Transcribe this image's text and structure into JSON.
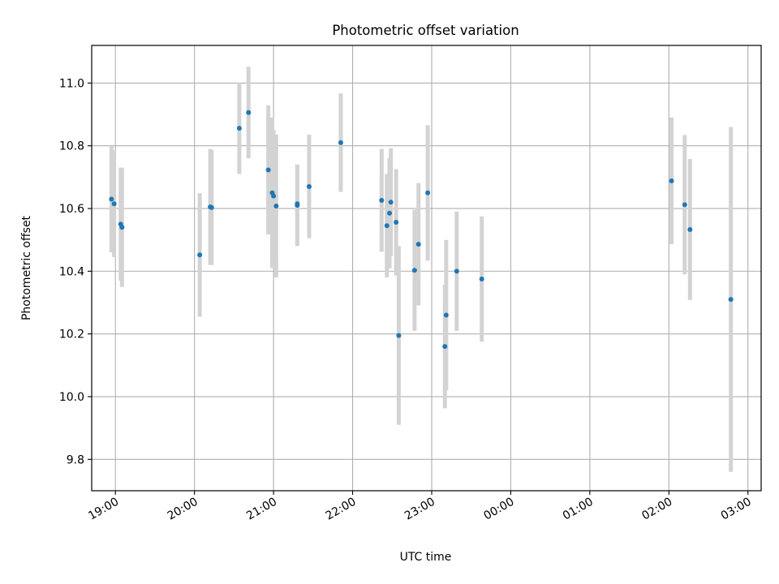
{
  "chart_data": {
    "type": "scatter",
    "title": "Photometric offset variation",
    "xlabel": "UTC time",
    "ylabel": "Photometric offset",
    "x_ticks": [
      "19:00",
      "20:00",
      "21:00",
      "22:00",
      "23:00",
      "00:00",
      "01:00",
      "02:00",
      "03:00"
    ],
    "y_ticks": [
      "9.8",
      "10.0",
      "10.2",
      "10.4",
      "10.6",
      "10.8",
      "11.0"
    ],
    "y_tick_values": [
      9.8,
      10.0,
      10.2,
      10.4,
      10.6,
      10.8,
      11.0
    ],
    "xlim": [
      "18:42",
      "03:10"
    ],
    "ylim": [
      9.7,
      11.12
    ],
    "grid": true,
    "legend": "none",
    "x_axis_start": "2000-01-01",
    "x_axis_end": "2000-01-02",
    "colors": {
      "marker": "#1f77b4",
      "errorbar": "#d3d3d3",
      "grid": "#b0b0b0"
    },
    "points": [
      {
        "time": "18:57",
        "y": 10.63,
        "err": 0.17
      },
      {
        "time": "18:59",
        "y": 10.615,
        "err": 0.17
      },
      {
        "time": "19:04",
        "y": 10.55,
        "err": 0.18
      },
      {
        "time": "19:05",
        "y": 10.54,
        "err": 0.19
      },
      {
        "time": "20:04",
        "y": 10.452,
        "err": 0.197
      },
      {
        "time": "20:12",
        "y": 10.605,
        "err": 0.185
      },
      {
        "time": "20:13",
        "y": 10.603,
        "err": 0.183
      },
      {
        "time": "20:34",
        "y": 10.856,
        "err": 0.146
      },
      {
        "time": "20:41",
        "y": 10.906,
        "err": 0.146
      },
      {
        "time": "20:56",
        "y": 10.723,
        "err": 0.206
      },
      {
        "time": "20:59",
        "y": 10.65,
        "err": 0.24
      },
      {
        "time": "21:00",
        "y": 10.64,
        "err": 0.21
      },
      {
        "time": "21:02",
        "y": 10.608,
        "err": 0.228
      },
      {
        "time": "21:18",
        "y": 10.615,
        "err": 0.125
      },
      {
        "time": "21:18",
        "y": 10.61,
        "err": 0.13
      },
      {
        "time": "21:27",
        "y": 10.67,
        "err": 0.165
      },
      {
        "time": "21:51",
        "y": 10.81,
        "err": 0.157
      },
      {
        "time": "22:22",
        "y": 10.626,
        "err": 0.164
      },
      {
        "time": "22:26",
        "y": 10.545,
        "err": 0.165
      },
      {
        "time": "22:28",
        "y": 10.585,
        "err": 0.176
      },
      {
        "time": "22:29",
        "y": 10.62,
        "err": 0.172
      },
      {
        "time": "22:33",
        "y": 10.556,
        "err": 0.17
      },
      {
        "time": "22:35",
        "y": 10.195,
        "err": 0.285
      },
      {
        "time": "22:47",
        "y": 10.403,
        "err": 0.193
      },
      {
        "time": "22:50",
        "y": 10.486,
        "err": 0.195
      },
      {
        "time": "22:57",
        "y": 10.65,
        "err": 0.216
      },
      {
        "time": "23:10",
        "y": 10.16,
        "err": 0.197
      },
      {
        "time": "23:11",
        "y": 10.26,
        "err": 0.24
      },
      {
        "time": "23:19",
        "y": 10.4,
        "err": 0.19
      },
      {
        "time": "23:38",
        "y": 10.375,
        "err": 0.2
      },
      {
        "time": "02:02",
        "y": 10.688,
        "err": 0.202
      },
      {
        "time": "02:12",
        "y": 10.612,
        "err": 0.222
      },
      {
        "time": "02:16",
        "y": 10.533,
        "err": 0.225
      },
      {
        "time": "02:47",
        "y": 10.31,
        "err": 0.55
      }
    ]
  }
}
